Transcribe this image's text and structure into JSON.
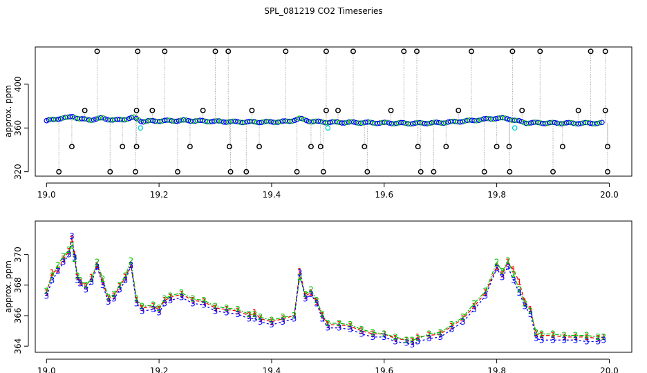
{
  "page": {
    "title": "SPL_081219  CO2 Timeseries"
  },
  "colors": {
    "series1": "#ff0000",
    "series2": "#00c000",
    "series3": "#0000ff",
    "cyan": "#00d0d0",
    "black": "#000000",
    "drop_line": "#9a9a9a"
  },
  "chart_data": [
    {
      "type": "scatter",
      "title": "",
      "xlabel": "",
      "ylabel": "approx. ppm",
      "xlim": [
        18.98,
        20.04
      ],
      "ylim": [
        316,
        434
      ],
      "x_ticks": [
        19.0,
        19.2,
        19.4,
        19.6,
        19.8,
        20.0
      ],
      "x_tick_labels": [
        "19.0",
        "19.2",
        "19.4",
        "19.6",
        "19.8",
        "20.0"
      ],
      "y_ticks": [
        320,
        360,
        400
      ],
      "y_tick_labels": [
        "320",
        "360",
        "400"
      ],
      "series": [
        {
          "name": "main trace (blue/green circles)",
          "x": [
            19.0,
            19.02,
            19.04,
            19.045,
            19.06,
            19.08,
            19.1,
            19.12,
            19.14,
            19.155,
            19.17,
            19.2,
            19.25,
            19.3,
            19.35,
            19.4,
            19.43,
            19.45,
            19.47,
            19.5,
            19.55,
            19.6,
            19.65,
            19.7,
            19.75,
            19.8,
            19.82,
            19.85,
            19.9,
            19.95,
            19.99
          ],
          "y": [
            366.5,
            368.5,
            369.5,
            371,
            368,
            367.5,
            369,
            367,
            368,
            369.5,
            366,
            366.5,
            366.8,
            366,
            365.5,
            365.5,
            366,
            368.5,
            366,
            365.2,
            365,
            364.6,
            364.2,
            364.8,
            366.5,
            369,
            368.5,
            364.8,
            364.5,
            364.3,
            364.5
          ]
        },
        {
          "name": "upper flags",
          "x": [
            19.09,
            19.162,
            19.21,
            19.3,
            19.323,
            19.425,
            19.497,
            19.545,
            19.635,
            19.658,
            19.755,
            19.828,
            19.877,
            19.967,
            19.993
          ],
          "y": [
            430,
            430,
            430,
            430,
            430,
            430,
            430,
            430,
            430,
            430,
            430,
            430,
            430,
            430,
            430
          ]
        },
        {
          "name": "mid-high flags",
          "x": [
            19.068,
            19.16,
            19.188,
            19.278,
            19.365,
            19.497,
            19.518,
            19.612,
            19.732,
            19.845,
            19.945,
            19.993
          ],
          "y": [
            376,
            376,
            376,
            376,
            376,
            376,
            376,
            376,
            376,
            376,
            376,
            376
          ]
        },
        {
          "name": "mid-low flags",
          "x": [
            19.045,
            19.135,
            19.16,
            19.255,
            19.325,
            19.378,
            19.47,
            19.487,
            19.565,
            19.66,
            19.71,
            19.8,
            19.822,
            19.917,
            19.997
          ],
          "y": [
            343,
            343,
            343,
            343,
            343,
            343,
            343,
            343,
            343,
            343,
            343,
            343,
            343,
            343,
            343
          ]
        },
        {
          "name": "lower flags",
          "x": [
            19.022,
            19.113,
            19.158,
            19.233,
            19.327,
            19.355,
            19.445,
            19.492,
            19.57,
            19.665,
            19.688,
            19.778,
            19.823,
            19.9,
            19.997
          ],
          "y": [
            320,
            320,
            320,
            320,
            320,
            320,
            320,
            320,
            320,
            320,
            320,
            320,
            320,
            320,
            320
          ]
        },
        {
          "name": "cyan markers",
          "x": [
            19.167,
            19.5,
            19.832
          ],
          "y": [
            360,
            360,
            360
          ]
        }
      ]
    },
    {
      "type": "line",
      "title": "",
      "xlabel": "",
      "ylabel": "approx. ppm",
      "xlim": [
        18.98,
        20.04
      ],
      "ylim": [
        363.6,
        372.2
      ],
      "x_ticks": [
        19.0,
        19.2,
        19.4,
        19.6,
        19.8,
        20.0
      ],
      "x_tick_labels": [
        "19.0",
        "19.2",
        "19.4",
        "19.6",
        "19.8",
        "20.0"
      ],
      "y_ticks": [
        364,
        366,
        368,
        370
      ],
      "y_tick_labels": [
        "364",
        "366",
        "368",
        "370"
      ],
      "x": [
        19.0,
        19.01,
        19.02,
        19.03,
        19.04,
        19.045,
        19.05,
        19.055,
        19.06,
        19.07,
        19.08,
        19.09,
        19.1,
        19.11,
        19.12,
        19.13,
        19.14,
        19.15,
        19.16,
        19.17,
        19.19,
        19.2,
        19.21,
        19.22,
        19.24,
        19.26,
        19.28,
        19.3,
        19.32,
        19.34,
        19.36,
        19.37,
        19.38,
        19.4,
        19.42,
        19.44,
        19.45,
        19.46,
        19.47,
        19.48,
        19.49,
        19.5,
        19.52,
        19.54,
        19.56,
        19.58,
        19.6,
        19.62,
        19.64,
        19.65,
        19.66,
        19.68,
        19.7,
        19.72,
        19.74,
        19.76,
        19.78,
        19.8,
        19.81,
        19.82,
        19.83,
        19.84,
        19.85,
        19.86,
        19.87,
        19.88,
        19.9,
        19.92,
        19.94,
        19.96,
        19.98,
        19.99
      ],
      "series": [
        {
          "name": "1",
          "values": [
            367.5,
            368.8,
            369.0,
            369.7,
            370.2,
            371.0,
            370.0,
            368.5,
            368.2,
            367.9,
            368.5,
            369.3,
            368.2,
            367.1,
            367.3,
            367.9,
            368.5,
            369.3,
            367.0,
            366.5,
            366.6,
            366.4,
            367.0,
            367.2,
            367.4,
            367.0,
            366.9,
            366.5,
            366.4,
            366.3,
            366.0,
            366.2,
            365.8,
            365.6,
            365.8,
            366.0,
            368.9,
            367.3,
            367.5,
            366.9,
            366.0,
            365.4,
            365.4,
            365.3,
            365.0,
            364.8,
            364.8,
            364.5,
            364.4,
            364.3,
            364.6,
            364.7,
            364.8,
            365.3,
            365.8,
            366.6,
            367.5,
            369.2,
            368.7,
            369.5,
            369.0,
            368.2,
            366.9,
            366.4,
            364.8,
            364.7,
            364.7,
            364.6,
            364.6,
            364.6,
            364.5,
            364.6
          ]
        },
        {
          "name": "2",
          "values": [
            367.6,
            368.6,
            369.3,
            369.9,
            370.3,
            370.6,
            369.7,
            368.6,
            368.3,
            368.0,
            368.4,
            369.5,
            368.4,
            367.2,
            367.4,
            368.0,
            368.6,
            369.6,
            367.1,
            366.6,
            366.7,
            366.5,
            367.1,
            367.3,
            367.5,
            367.1,
            367.0,
            366.6,
            366.5,
            366.4,
            366.1,
            366.1,
            365.9,
            365.7,
            365.9,
            366.0,
            368.5,
            367.4,
            367.7,
            367.0,
            366.1,
            365.5,
            365.5,
            365.4,
            365.1,
            364.9,
            364.8,
            364.6,
            364.4,
            364.4,
            364.5,
            364.8,
            364.9,
            365.4,
            365.9,
            366.8,
            367.6,
            369.5,
            368.9,
            369.6,
            368.7,
            367.7,
            366.8,
            366.3,
            364.9,
            364.8,
            364.8,
            364.7,
            364.7,
            364.7,
            364.6,
            364.6
          ]
        },
        {
          "name": "3",
          "values": [
            367.3,
            368.3,
            368.9,
            369.5,
            370.0,
            371.2,
            369.8,
            368.3,
            368.1,
            367.7,
            368.2,
            369.2,
            368.0,
            366.9,
            367.1,
            367.7,
            368.3,
            369.3,
            366.8,
            366.3,
            366.4,
            366.2,
            366.8,
            367.0,
            367.2,
            366.8,
            366.7,
            366.3,
            366.2,
            366.1,
            365.8,
            365.8,
            365.6,
            365.4,
            365.6,
            365.8,
            368.8,
            367.1,
            367.4,
            366.8,
            365.8,
            365.2,
            365.2,
            365.1,
            364.8,
            364.6,
            364.6,
            364.3,
            364.2,
            364.1,
            364.3,
            364.5,
            364.6,
            365.1,
            365.6,
            366.4,
            367.3,
            369.1,
            368.5,
            369.2,
            368.3,
            367.5,
            366.6,
            366.1,
            364.5,
            364.4,
            364.4,
            364.4,
            364.4,
            364.3,
            364.3,
            364.4
          ]
        }
      ]
    }
  ]
}
